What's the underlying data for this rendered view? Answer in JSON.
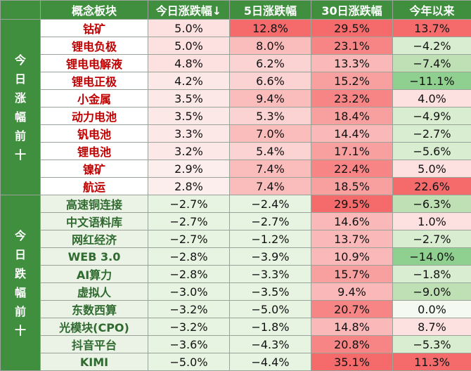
{
  "colors": {
    "header_bg": "#3f8f3f",
    "rise_name": "#c00000",
    "fall_name": "#2f6a2f",
    "rise_strong": "#f56b6b",
    "rise_medium": "#f8a0a0",
    "rise_light": "#fde0e0",
    "fall_light": "#e8f4e2",
    "fall_medium": "#bfe0b4",
    "fall_strong": "#8fcf8f"
  },
  "header": {
    "col1": "概念板块",
    "col2": "今日涨跌幅↓",
    "col3": "5日涨跌幅",
    "col4": "30日涨跌幅",
    "col5": "今年以来"
  },
  "groups": [
    {
      "label_chars": [
        "今",
        "日",
        "涨",
        "幅",
        "前",
        "十"
      ],
      "rows": [
        {
          "name": "钴矿",
          "today": "5.0%",
          "d5": "12.8%",
          "d30": "29.5%",
          "ytd": "13.7%"
        },
        {
          "name": "锂电负极",
          "today": "5.0%",
          "d5": "8.0%",
          "d30": "23.1%",
          "ytd": "−4.2%"
        },
        {
          "name": "锂电电解液",
          "today": "4.8%",
          "d5": "6.2%",
          "d30": "13.3%",
          "ytd": "−7.4%"
        },
        {
          "name": "锂电正极",
          "today": "4.2%",
          "d5": "6.6%",
          "d30": "15.2%",
          "ytd": "−11.1%"
        },
        {
          "name": "小金属",
          "today": "3.5%",
          "d5": "9.4%",
          "d30": "23.2%",
          "ytd": "4.0%"
        },
        {
          "name": "动力电池",
          "today": "3.5%",
          "d5": "5.3%",
          "d30": "18.4%",
          "ytd": "−4.9%"
        },
        {
          "name": "钒电池",
          "today": "3.3%",
          "d5": "7.0%",
          "d30": "14.4%",
          "ytd": "−2.7%"
        },
        {
          "name": "锂电池",
          "today": "3.2%",
          "d5": "5.4%",
          "d30": "17.1%",
          "ytd": "−5.6%"
        },
        {
          "name": "镍矿",
          "today": "2.9%",
          "d5": "7.4%",
          "d30": "22.4%",
          "ytd": "5.0%"
        },
        {
          "name": "航运",
          "today": "2.8%",
          "d5": "7.4%",
          "d30": "18.5%",
          "ytd": "22.6%"
        }
      ]
    },
    {
      "label_chars": [
        "今",
        "日",
        "跌",
        "幅",
        "前",
        "十"
      ],
      "rows": [
        {
          "name": "高速铜连接",
          "today": "−2.7%",
          "d5": "−2.4%",
          "d30": "29.5%",
          "ytd": "−6.3%"
        },
        {
          "name": "中文语料库",
          "today": "−2.7%",
          "d5": "−2.7%",
          "d30": "14.6%",
          "ytd": "1.0%"
        },
        {
          "name": "网红经济",
          "today": "−2.7%",
          "d5": "−1.2%",
          "d30": "13.7%",
          "ytd": "−2.7%"
        },
        {
          "name": "WEB 3.0",
          "today": "−2.8%",
          "d5": "−3.9%",
          "d30": "10.9%",
          "ytd": "−14.0%"
        },
        {
          "name": "AI算力",
          "today": "−2.8%",
          "d5": "−3.3%",
          "d30": "15.7%",
          "ytd": "−1.8%"
        },
        {
          "name": "虚拟人",
          "today": "−3.0%",
          "d5": "−3.5%",
          "d30": "9.4%",
          "ytd": "−9.0%"
        },
        {
          "name": "东数西算",
          "today": "−3.2%",
          "d5": "−5.0%",
          "d30": "20.7%",
          "ytd": "0.0%"
        },
        {
          "name": "光模块(CPO)",
          "today": "−3.2%",
          "d5": "−1.8%",
          "d30": "14.8%",
          "ytd": "8.7%"
        },
        {
          "name": "抖音平台",
          "today": "−3.6%",
          "d5": "−4.3%",
          "d30": "20.8%",
          "ytd": "−5.3%"
        },
        {
          "name": "KIMI",
          "today": "−5.0%",
          "d5": "−4.4%",
          "d30": "35.1%",
          "ytd": "11.3%"
        }
      ]
    }
  ]
}
